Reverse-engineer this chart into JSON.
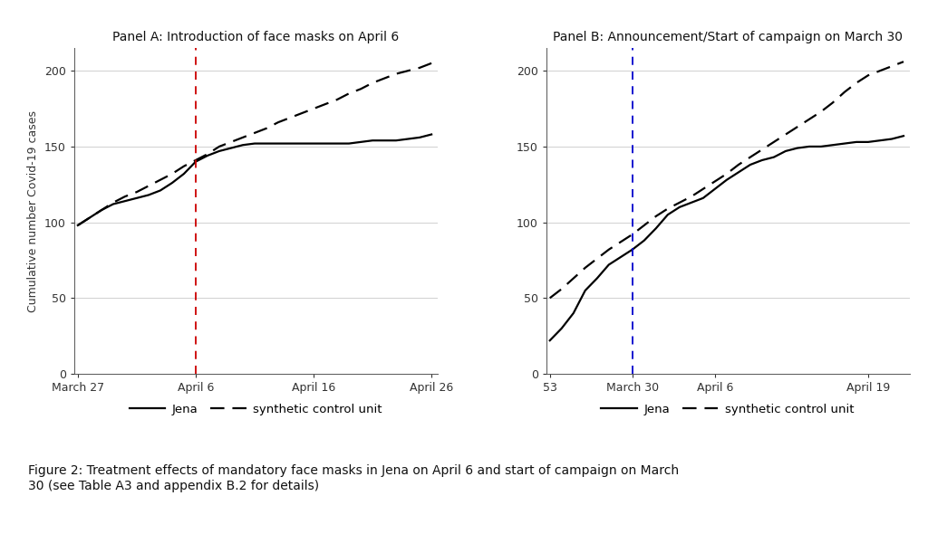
{
  "panel_a_title": "Panel A: Introduction of face masks on April 6",
  "panel_b_title": "Panel B: Announcement/Start of campaign on March 30",
  "ylabel": "Cumulative number Covid-19 cases",
  "figure_caption_line1": "Figure 2: Treatment effects of mandatory face masks in Jena on April 6 and start of campaign on March",
  "figure_caption_line2": "30 (see Table A3 and appendix B.2 for details)",
  "panel_a": {
    "xtick_labels": [
      "March 27",
      "April 6",
      "April 16",
      "April 26"
    ],
    "xtick_positions": [
      0,
      10,
      20,
      30
    ],
    "vline_x": 10,
    "vline_color": "#cc0000",
    "ylim": [
      0,
      215
    ],
    "yticks": [
      0,
      50,
      100,
      150,
      200
    ],
    "jena_x": [
      0,
      1,
      2,
      3,
      4,
      5,
      6,
      7,
      8,
      9,
      10,
      11,
      12,
      13,
      14,
      15,
      16,
      17,
      18,
      19,
      20,
      21,
      22,
      23,
      24,
      25,
      26,
      27,
      28,
      29,
      30
    ],
    "jena_y": [
      98,
      103,
      108,
      112,
      114,
      116,
      118,
      121,
      126,
      132,
      140,
      144,
      147,
      149,
      151,
      152,
      152,
      152,
      152,
      152,
      152,
      152,
      152,
      152,
      153,
      154,
      154,
      154,
      155,
      156,
      158
    ],
    "synth_x": [
      0,
      1,
      2,
      3,
      4,
      5,
      6,
      7,
      8,
      9,
      10,
      11,
      12,
      13,
      14,
      15,
      16,
      17,
      18,
      19,
      20,
      21,
      22,
      23,
      24,
      25,
      26,
      27,
      28,
      29,
      30
    ],
    "synth_y": [
      98,
      103,
      108,
      113,
      117,
      120,
      124,
      128,
      132,
      137,
      141,
      145,
      150,
      153,
      156,
      159,
      162,
      166,
      169,
      172,
      175,
      178,
      181,
      185,
      188,
      192,
      195,
      198,
      200,
      202,
      205
    ]
  },
  "panel_b": {
    "xtick_labels": [
      "53",
      "March 30",
      "April 6",
      "April 19"
    ],
    "xtick_positions": [
      0,
      7,
      14,
      27
    ],
    "vline_x": 7,
    "vline_color": "#0000cc",
    "ylim": [
      0,
      215
    ],
    "yticks": [
      0,
      50,
      100,
      150,
      200
    ],
    "jena_x": [
      0,
      1,
      2,
      3,
      4,
      5,
      6,
      7,
      8,
      9,
      10,
      11,
      12,
      13,
      14,
      15,
      16,
      17,
      18,
      19,
      20,
      21,
      22,
      23,
      24,
      25,
      26,
      27,
      28,
      29,
      30
    ],
    "jena_y": [
      22,
      30,
      40,
      55,
      63,
      72,
      77,
      82,
      88,
      96,
      105,
      110,
      113,
      116,
      122,
      128,
      133,
      138,
      141,
      143,
      147,
      149,
      150,
      150,
      151,
      152,
      153,
      153,
      154,
      155,
      157
    ],
    "synth_x": [
      0,
      1,
      2,
      3,
      4,
      5,
      6,
      7,
      8,
      9,
      10,
      11,
      12,
      13,
      14,
      15,
      16,
      17,
      18,
      19,
      20,
      21,
      22,
      23,
      24,
      25,
      26,
      27,
      28,
      29,
      30
    ],
    "synth_y": [
      50,
      56,
      63,
      70,
      76,
      82,
      87,
      92,
      98,
      104,
      109,
      113,
      117,
      122,
      127,
      132,
      138,
      143,
      148,
      153,
      158,
      163,
      168,
      173,
      179,
      186,
      192,
      197,
      200,
      203,
      206
    ]
  },
  "legend_jena": "Jena",
  "legend_synth": "synthetic control unit",
  "line_color": "#000000",
  "background_color": "#ffffff",
  "grid_color": "#d0d0d0"
}
